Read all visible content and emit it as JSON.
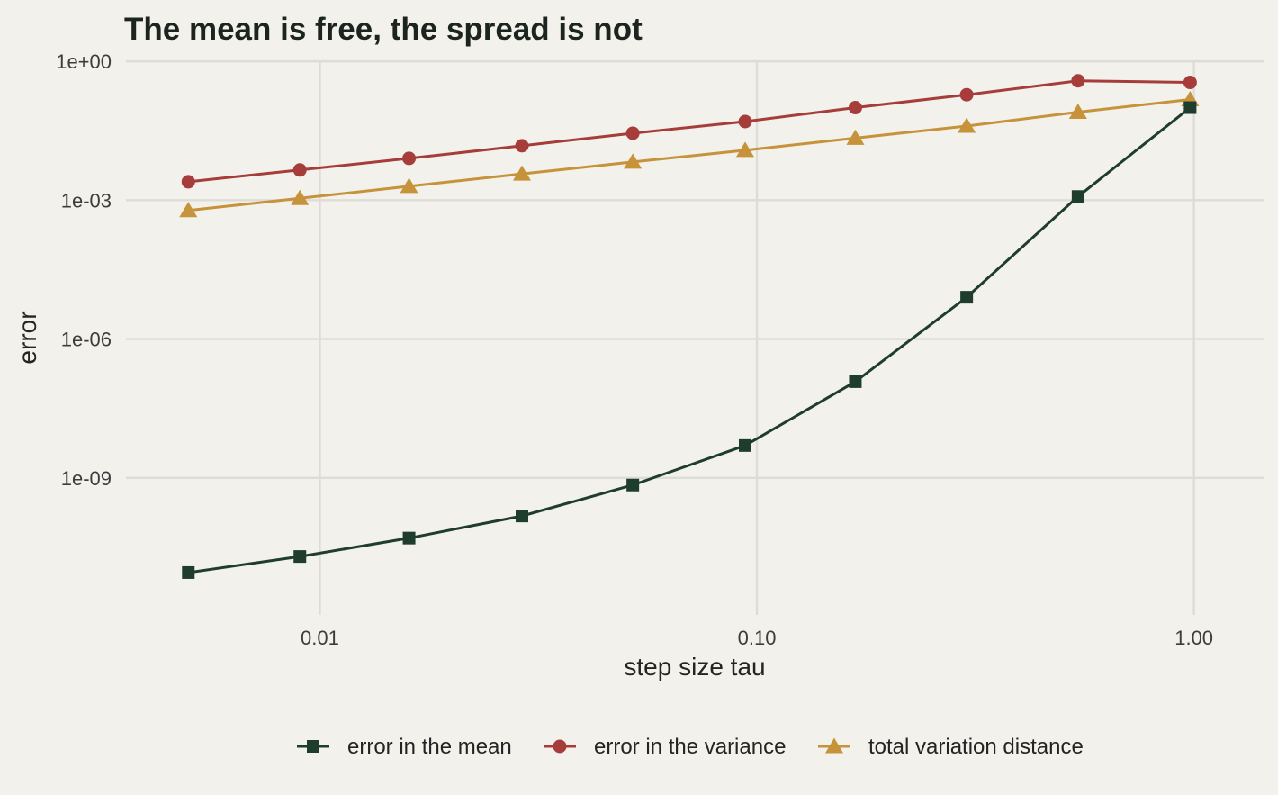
{
  "chart_data": {
    "type": "line",
    "title": "The mean is free, the spread is not",
    "xlabel": "step size tau",
    "ylabel": "error",
    "x_scale": "log10",
    "y_scale": "log10",
    "xlim": [
      0.0036,
      1.45
    ],
    "ylim": [
      1e-12,
      1.8
    ],
    "x_ticks": [
      0.01,
      0.1,
      1.0
    ],
    "x_tick_labels": [
      "0.01",
      "0.10",
      "1.00"
    ],
    "y_ticks": [
      1e-09,
      1e-06,
      0.001,
      1
    ],
    "y_tick_labels": [
      "1e-09",
      "1e-06",
      "1e-03",
      "1e+00"
    ],
    "grid": true,
    "legend_position": "bottom",
    "x": [
      0.005,
      0.009,
      0.016,
      0.029,
      0.052,
      0.094,
      0.168,
      0.302,
      0.543,
      0.98
    ],
    "series": [
      {
        "name": "error in the mean",
        "color": "#1f3d2e",
        "marker": "square",
        "values": [
          9e-12,
          2e-11,
          5e-11,
          1.5e-10,
          7e-10,
          5e-09,
          1.2e-07,
          8e-06,
          0.0012,
          0.1
        ]
      },
      {
        "name": "error in the variance",
        "color": "#a63d3b",
        "marker": "circle",
        "values": [
          0.0025,
          0.0045,
          0.008,
          0.015,
          0.028,
          0.05,
          0.1,
          0.19,
          0.38,
          0.35
        ]
      },
      {
        "name": "total variation distance",
        "color": "#c6923a",
        "marker": "triangle",
        "values": [
          0.0006,
          0.0011,
          0.002,
          0.0037,
          0.0067,
          0.012,
          0.022,
          0.04,
          0.08,
          0.15
        ]
      }
    ]
  }
}
